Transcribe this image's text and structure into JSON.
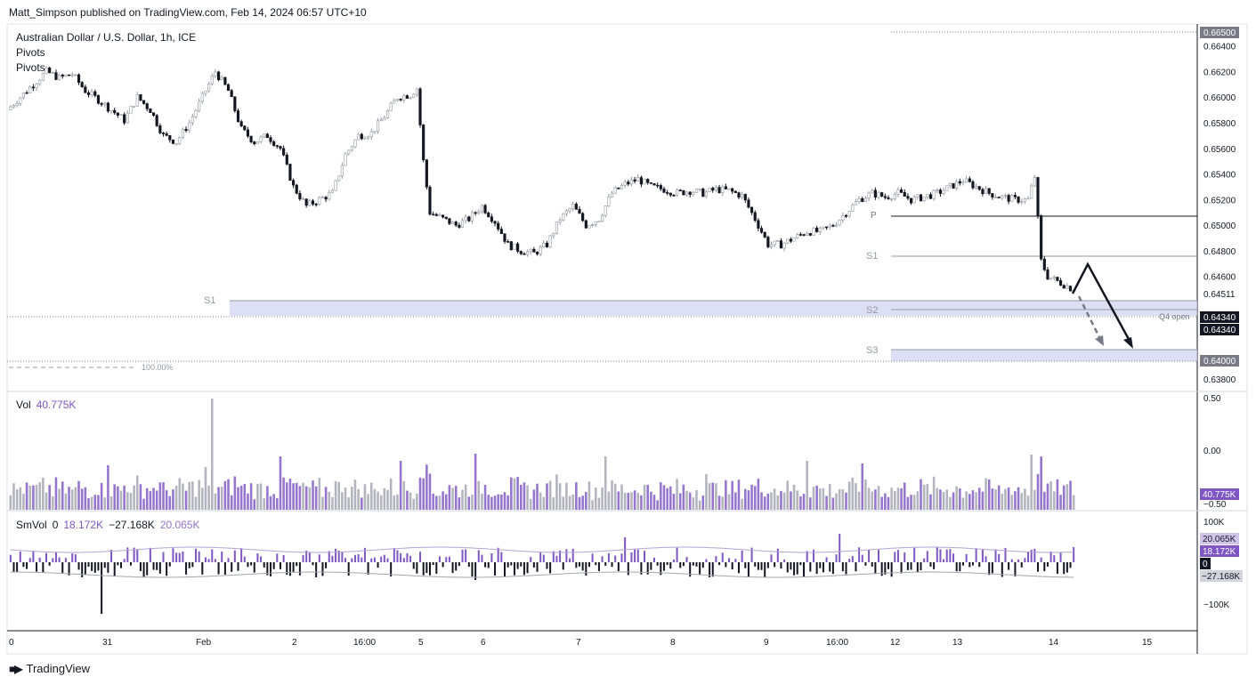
{
  "header": {
    "publisher": "Matt_Simpson published on TradingView.com, Feb 14, 2024 06:57 UTC+10"
  },
  "legend": {
    "symbol": "Australian Dollar / U.S. Dollar, 1h, ICE",
    "pivots_1": "Pivots",
    "pivots_2": "Pivots"
  },
  "volume_legend": {
    "label": "Vol",
    "value": "40.775K"
  },
  "smvol_legend": {
    "label": "SmVol",
    "v0": "0",
    "v1": "18.172K",
    "v2": "−27.168K",
    "v3": "20.065K"
  },
  "colors": {
    "up": "#9598a1",
    "down": "#131722",
    "purple": "#7e57c2",
    "band": "#d1d4f0",
    "accent": "#2962ff"
  },
  "price_axis": {
    "ticks": [
      "0.66500",
      "0.66400",
      "0.66200",
      "0.66000",
      "0.65800",
      "0.65600",
      "0.65400",
      "0.65200",
      "0.65000",
      "0.64800",
      "0.64600",
      "0.64511",
      "0.64340",
      "0.64340",
      "0.64000",
      "0.63800"
    ],
    "ticks_plain": [
      "0.66400",
      "0.66200",
      "0.66000",
      "0.65800",
      "0.65600",
      "0.65400",
      "0.65200",
      "0.65000",
      "0.64800",
      "0.64600",
      "0.63800"
    ],
    "labels_boxed": {
      "top": "0.66500",
      "last": "0.64511",
      "q4open_1": "0.64340",
      "q4open_2": "0.64340",
      "s3": "0.64000"
    }
  },
  "pivot_labels": {
    "p": "P",
    "s1_left": "S1",
    "s1_right": "S1",
    "s2": "S2",
    "s3": "S3",
    "q4open": "Q4 open",
    "fib": "100.00%"
  },
  "vol_axis": {
    "ticks": [
      "0.50",
      "0.00",
      "−0.50"
    ],
    "badge": "40.775K"
  },
  "smvol_axis": {
    "ticks": [
      "100K",
      "−100K"
    ],
    "badges": [
      "20.065K",
      "18.172K",
      "0",
      "−27.168K"
    ]
  },
  "time_axis": {
    "labels": [
      "0",
      "31",
      "Feb",
      "2",
      "16:00",
      "5",
      "6",
      "7",
      "8",
      "9",
      "16:00",
      "12",
      "13",
      "14",
      "15"
    ]
  },
  "footer": {
    "brand": "TradingView"
  },
  "chart_data": {
    "type": "candlestick",
    "title": "Australian Dollar / U.S. Dollar, 1h, ICE",
    "ylim": [
      0.6373,
      0.6655
    ],
    "price_path": [
      [
        0,
        0.659
      ],
      [
        4,
        0.66
      ],
      [
        8,
        0.661
      ],
      [
        12,
        0.662
      ],
      [
        16,
        0.6615
      ],
      [
        20,
        0.6618
      ],
      [
        24,
        0.6605
      ],
      [
        28,
        0.6598
      ],
      [
        32,
        0.659
      ],
      [
        36,
        0.6582
      ],
      [
        40,
        0.66
      ],
      [
        44,
        0.659
      ],
      [
        48,
        0.657
      ],
      [
        52,
        0.6565
      ],
      [
        56,
        0.658
      ],
      [
        60,
        0.66
      ],
      [
        64,
        0.662
      ],
      [
        68,
        0.6605
      ],
      [
        72,
        0.6575
      ],
      [
        76,
        0.6565
      ],
      [
        80,
        0.657
      ],
      [
        84,
        0.656
      ],
      [
        88,
        0.653
      ],
      [
        92,
        0.6515
      ],
      [
        96,
        0.652
      ],
      [
        100,
        0.6525
      ],
      [
        104,
        0.6555
      ],
      [
        108,
        0.657
      ],
      [
        112,
        0.6572
      ],
      [
        116,
        0.6585
      ],
      [
        120,
        0.66
      ],
      [
        124,
        0.6602
      ],
      [
        126,
        0.6607
      ],
      [
        128,
        0.655
      ],
      [
        130,
        0.651
      ],
      [
        134,
        0.6505
      ],
      [
        138,
        0.65
      ],
      [
        142,
        0.6505
      ],
      [
        146,
        0.6515
      ],
      [
        150,
        0.6503
      ],
      [
        154,
        0.6485
      ],
      [
        158,
        0.648
      ],
      [
        162,
        0.6478
      ],
      [
        166,
        0.6485
      ],
      [
        170,
        0.6505
      ],
      [
        174,
        0.6515
      ],
      [
        178,
        0.65
      ],
      [
        182,
        0.6505
      ],
      [
        186,
        0.6525
      ],
      [
        190,
        0.6532
      ],
      [
        194,
        0.6536
      ],
      [
        198,
        0.653
      ],
      [
        202,
        0.6528
      ],
      [
        206,
        0.6525
      ],
      [
        210,
        0.6527
      ],
      [
        214,
        0.6525
      ],
      [
        218,
        0.6528
      ],
      [
        222,
        0.6527
      ],
      [
        226,
        0.6523
      ],
      [
        230,
        0.6505
      ],
      [
        234,
        0.6485
      ],
      [
        238,
        0.6485
      ],
      [
        242,
        0.649
      ],
      [
        246,
        0.6495
      ],
      [
        250,
        0.6495
      ],
      [
        254,
        0.65
      ],
      [
        258,
        0.651
      ],
      [
        262,
        0.652
      ],
      [
        266,
        0.6525
      ],
      [
        270,
        0.6522
      ],
      [
        274,
        0.6525
      ],
      [
        278,
        0.652
      ],
      [
        282,
        0.6522
      ],
      [
        286,
        0.6525
      ],
      [
        290,
        0.653
      ],
      [
        294,
        0.6535
      ],
      [
        298,
        0.653
      ],
      [
        302,
        0.6525
      ],
      [
        306,
        0.6522
      ],
      [
        310,
        0.652
      ],
      [
        314,
        0.652
      ],
      [
        316,
        0.6538
      ],
      [
        318,
        0.6472
      ],
      [
        320,
        0.646
      ],
      [
        324,
        0.6455
      ],
      [
        327,
        0.6451
      ]
    ],
    "bars": 328,
    "last_price": 0.64511,
    "levels": [
      {
        "name": "P",
        "price": 0.651
      },
      {
        "name": "S1",
        "price": 0.648
      },
      {
        "name": "S2",
        "price": 0.6438
      },
      {
        "name": "S3",
        "price": 0.641
      },
      {
        "name": "Q4 open",
        "price": 0.6434
      },
      {
        "name": "100.00%",
        "price": 0.64
      }
    ],
    "volume": {
      "last": "40.775K"
    },
    "smvol": {
      "values": [
        "0",
        "18.172K",
        "−27.168K",
        "20.065K"
      ]
    }
  }
}
